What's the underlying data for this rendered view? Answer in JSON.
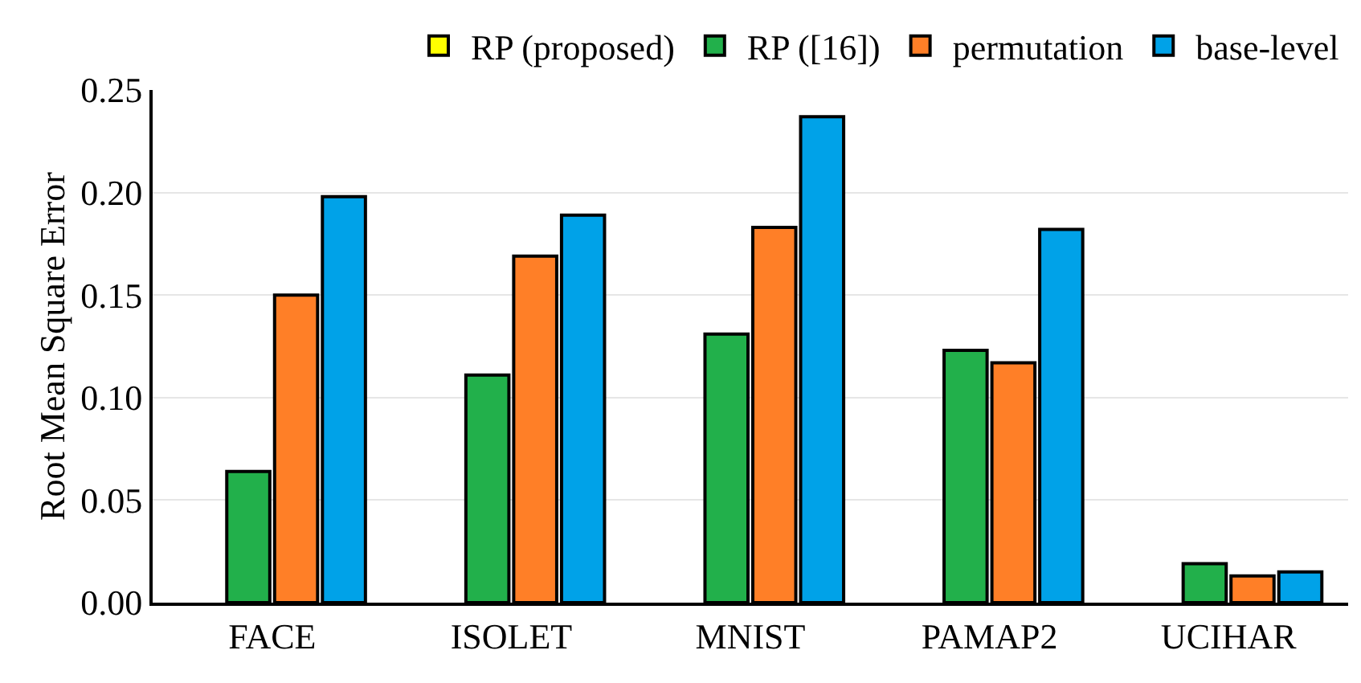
{
  "chart_data": {
    "type": "bar",
    "ylabel": "Root Mean Square Error",
    "categories": [
      "FACE",
      "ISOLET",
      "MNIST",
      "PAMAP2",
      "UCIHAR"
    ],
    "series": [
      {
        "name": "RP (proposed)",
        "color": "#ffff00",
        "values": [
          null,
          null,
          null,
          null,
          null
        ]
      },
      {
        "name": "RP ([16])",
        "color": "#22b04b",
        "values": [
          0.064,
          0.111,
          0.131,
          0.123,
          0.019
        ]
      },
      {
        "name": "permutation",
        "color": "#ff7f27",
        "values": [
          0.15,
          0.169,
          0.183,
          0.117,
          0.013
        ]
      },
      {
        "name": "base-level",
        "color": "#00a2e8",
        "values": [
          0.198,
          0.189,
          0.237,
          0.182,
          0.015
        ]
      }
    ],
    "ylim": [
      0,
      0.25
    ],
    "yticks": [
      {
        "value": 0,
        "label": "0.00"
      },
      {
        "value": 0.05,
        "label": "0.05"
      },
      {
        "value": 0.1,
        "label": "0.10"
      },
      {
        "value": 0.15,
        "label": "0.15"
      },
      {
        "value": 0.2,
        "label": "0.20"
      },
      {
        "value": 0.25,
        "label": "0.25"
      }
    ],
    "grid": "y",
    "legend": "top"
  }
}
